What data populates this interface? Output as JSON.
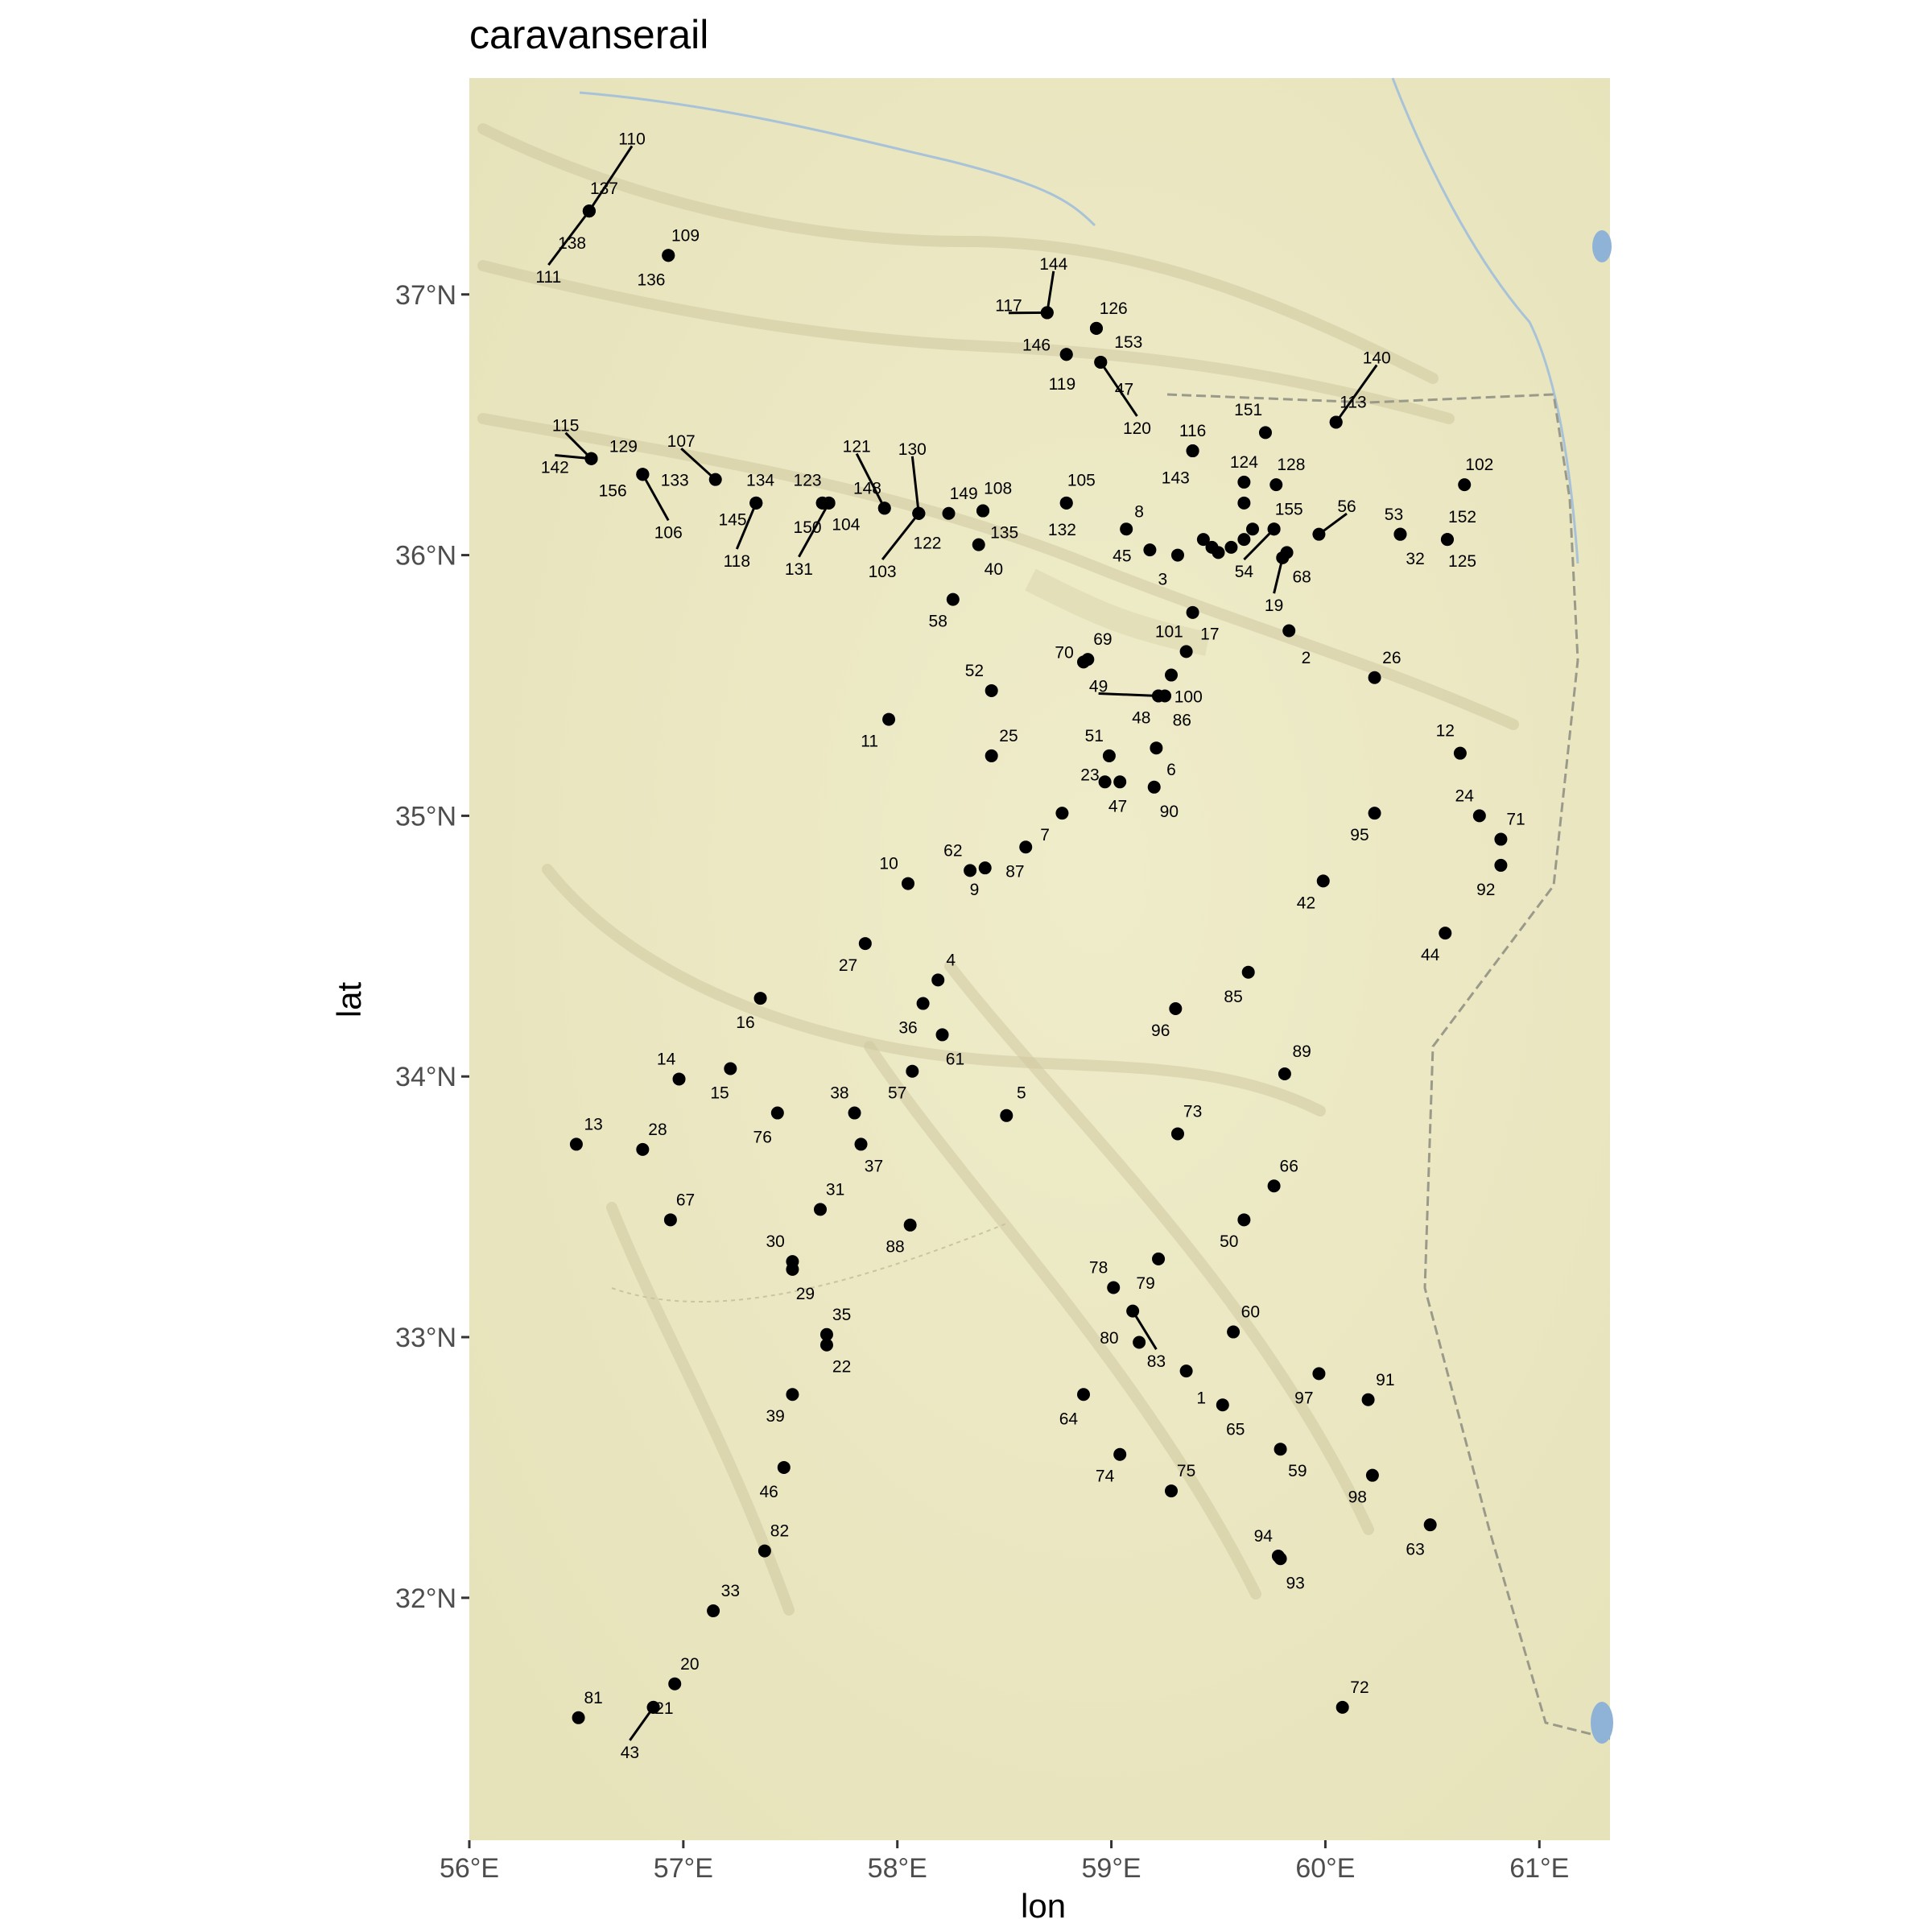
{
  "title": "caravanserail",
  "axes": {
    "xlabel": "lon",
    "ylabel": "lat",
    "xlim": [
      56.0,
      61.33
    ],
    "ylim": [
      31.07,
      37.83
    ],
    "xticks": [
      {
        "value": 56,
        "label": "56°E"
      },
      {
        "value": 57,
        "label": "57°E"
      },
      {
        "value": 58,
        "label": "58°E"
      },
      {
        "value": 59,
        "label": "59°E"
      },
      {
        "value": 60,
        "label": "60°E"
      },
      {
        "value": 61,
        "label": "61°E"
      }
    ],
    "yticks": [
      {
        "value": 32,
        "label": "32°N"
      },
      {
        "value": 33,
        "label": "33°N"
      },
      {
        "value": 34,
        "label": "34°N"
      },
      {
        "value": 35,
        "label": "35°N"
      },
      {
        "value": 36,
        "label": "36°N"
      },
      {
        "value": 37,
        "label": "37°N"
      }
    ]
  },
  "colors": {
    "point": "#000000",
    "background_terrain": "#ede9c6",
    "river": "#a8c3d8",
    "lake": "#8fb3d6",
    "border": "#9a9a8a"
  },
  "chart_data": {
    "type": "scatter",
    "title": "caravanserail",
    "xlabel": "lon",
    "ylabel": "lat",
    "xlim": [
      56.0,
      61.33
    ],
    "ylim": [
      31.07,
      37.83
    ],
    "grid": false,
    "legend": "none",
    "points": [
      {
        "id": "1",
        "x": 59.35,
        "y": 32.87,
        "lx": 59.42,
        "ly": 32.77
      },
      {
        "id": "2",
        "x": 59.83,
        "y": 35.71,
        "lx": 59.91,
        "ly": 35.61
      },
      {
        "id": "3",
        "x": 59.31,
        "y": 36.0,
        "lx": 59.24,
        "ly": 35.91
      },
      {
        "id": "4",
        "x": 58.19,
        "y": 34.37,
        "lx": 58.25,
        "ly": 34.45
      },
      {
        "id": "5",
        "x": 58.51,
        "y": 33.85,
        "lx": 58.58,
        "ly": 33.94
      },
      {
        "id": "6",
        "x": 59.21,
        "y": 35.26,
        "lx": 59.28,
        "ly": 35.18
      },
      {
        "id": "7",
        "x": 58.77,
        "y": 35.01,
        "lx": 58.69,
        "ly": 34.93
      },
      {
        "id": "8",
        "x": 59.07,
        "y": 36.1,
        "lx": 59.13,
        "ly": 36.17
      },
      {
        "id": "9",
        "x": 58.41,
        "y": 34.8,
        "lx": 58.36,
        "ly": 34.72
      },
      {
        "id": "10",
        "x": 58.05,
        "y": 34.74,
        "lx": 57.96,
        "ly": 34.82
      },
      {
        "id": "11",
        "x": 57.96,
        "y": 35.37,
        "lx": 57.87,
        "ly": 35.29
      },
      {
        "id": "12",
        "x": 60.63,
        "y": 35.24,
        "lx": 60.56,
        "ly": 35.33
      },
      {
        "id": "13",
        "x": 56.5,
        "y": 33.74,
        "lx": 56.58,
        "ly": 33.82
      },
      {
        "id": "14",
        "x": 56.98,
        "y": 33.99,
        "lx": 56.92,
        "ly": 34.07
      },
      {
        "id": "15",
        "x": 57.22,
        "y": 34.03,
        "lx": 57.17,
        "ly": 33.94
      },
      {
        "id": "16",
        "x": 57.36,
        "y": 34.3,
        "lx": 57.29,
        "ly": 34.21
      },
      {
        "id": "17",
        "x": 59.38,
        "y": 35.78,
        "lx": 59.46,
        "ly": 35.7
      },
      {
        "id": "19",
        "x": 59.8,
        "y": 35.99,
        "lx": 59.76,
        "ly": 35.81
      },
      {
        "id": "20",
        "x": 56.96,
        "y": 31.67,
        "lx": 57.03,
        "ly": 31.75
      },
      {
        "id": "21",
        "x": 56.86,
        "y": 31.58,
        "lx": 56.91,
        "ly": 31.58
      },
      {
        "id": "22",
        "x": 57.67,
        "y": 32.97,
        "lx": 57.74,
        "ly": 32.89
      },
      {
        "id": "23",
        "x": 58.97,
        "y": 35.13,
        "lx": 58.9,
        "ly": 35.16
      },
      {
        "id": "24",
        "x": 60.72,
        "y": 35.0,
        "lx": 60.65,
        "ly": 35.08
      },
      {
        "id": "25",
        "x": 58.44,
        "y": 35.23,
        "lx": 58.52,
        "ly": 35.31
      },
      {
        "id": "26",
        "x": 60.23,
        "y": 35.53,
        "lx": 60.31,
        "ly": 35.61
      },
      {
        "id": "27",
        "x": 57.85,
        "y": 34.51,
        "lx": 57.77,
        "ly": 34.43
      },
      {
        "id": "28",
        "x": 56.81,
        "y": 33.72,
        "lx": 56.88,
        "ly": 33.8
      },
      {
        "id": "29",
        "x": 57.51,
        "y": 33.26,
        "lx": 57.57,
        "ly": 33.17
      },
      {
        "id": "30",
        "x": 57.51,
        "y": 33.29,
        "lx": 57.43,
        "ly": 33.37
      },
      {
        "id": "31",
        "x": 57.64,
        "y": 33.49,
        "lx": 57.71,
        "ly": 33.57
      },
      {
        "id": "32",
        "x": 60.35,
        "y": 36.08,
        "lx": 60.42,
        "ly": 35.99
      },
      {
        "id": "33",
        "x": 57.14,
        "y": 31.95,
        "lx": 57.22,
        "ly": 32.03
      },
      {
        "id": "35",
        "x": 57.67,
        "y": 33.01,
        "lx": 57.74,
        "ly": 33.09
      },
      {
        "id": "36",
        "x": 58.12,
        "y": 34.28,
        "lx": 58.05,
        "ly": 34.19
      },
      {
        "id": "37",
        "x": 57.83,
        "y": 33.74,
        "lx": 57.89,
        "ly": 33.66
      },
      {
        "id": "38",
        "x": 57.8,
        "y": 33.86,
        "lx": 57.73,
        "ly": 33.94
      },
      {
        "id": "39",
        "x": 57.51,
        "y": 32.78,
        "lx": 57.43,
        "ly": 32.7
      },
      {
        "id": "40",
        "x": 58.38,
        "y": 36.04,
        "lx": 58.45,
        "ly": 35.95
      },
      {
        "id": "42",
        "x": 59.99,
        "y": 34.75,
        "lx": 59.91,
        "ly": 34.67
      },
      {
        "id": "43",
        "x": 56.86,
        "y": 31.58,
        "lx": 56.75,
        "ly": 31.41
      },
      {
        "id": "44",
        "x": 60.56,
        "y": 34.55,
        "lx": 60.49,
        "ly": 34.47
      },
      {
        "id": "45",
        "x": 59.18,
        "y": 36.02,
        "lx": 59.05,
        "ly": 36.0
      },
      {
        "id": "46",
        "x": 57.47,
        "y": 32.5,
        "lx": 57.4,
        "ly": 32.41
      },
      {
        "id": "47",
        "x": 58.95,
        "y": 36.74,
        "lx": 59.06,
        "ly": 36.64
      },
      {
        "id": "47b",
        "x": 59.04,
        "y": 35.13,
        "lx": 59.03,
        "ly": 35.04
      },
      {
        "id": "48",
        "x": 59.22,
        "y": 35.46,
        "lx": 59.14,
        "ly": 35.38
      },
      {
        "id": "49",
        "x": 59.22,
        "y": 35.46,
        "lx": 58.94,
        "ly": 35.5
      },
      {
        "id": "50",
        "x": 59.62,
        "y": 33.45,
        "lx": 59.55,
        "ly": 33.37
      },
      {
        "id": "51",
        "x": 58.99,
        "y": 35.23,
        "lx": 58.92,
        "ly": 35.31
      },
      {
        "id": "52",
        "x": 58.44,
        "y": 35.48,
        "lx": 58.36,
        "ly": 35.56
      },
      {
        "id": "53",
        "x": 60.35,
        "y": 36.08,
        "lx": 60.32,
        "ly": 36.16
      },
      {
        "id": "54",
        "x": 59.76,
        "y": 36.1,
        "lx": 59.62,
        "ly": 35.94
      },
      {
        "id": "56",
        "x": 59.97,
        "y": 36.08,
        "lx": 60.1,
        "ly": 36.19
      },
      {
        "id": "57",
        "x": 58.07,
        "y": 34.02,
        "lx": 58.0,
        "ly": 33.94
      },
      {
        "id": "58",
        "x": 58.26,
        "y": 35.83,
        "lx": 58.19,
        "ly": 35.75
      },
      {
        "id": "59",
        "x": 59.79,
        "y": 32.57,
        "lx": 59.87,
        "ly": 32.49
      },
      {
        "id": "60",
        "x": 59.57,
        "y": 33.02,
        "lx": 59.65,
        "ly": 33.1
      },
      {
        "id": "61",
        "x": 58.21,
        "y": 34.16,
        "lx": 58.27,
        "ly": 34.07
      },
      {
        "id": "62",
        "x": 58.34,
        "y": 34.79,
        "lx": 58.26,
        "ly": 34.87
      },
      {
        "id": "63",
        "x": 60.49,
        "y": 32.28,
        "lx": 60.42,
        "ly": 32.19
      },
      {
        "id": "64",
        "x": 58.87,
        "y": 32.78,
        "lx": 58.8,
        "ly": 32.69
      },
      {
        "id": "65",
        "x": 59.52,
        "y": 32.74,
        "lx": 59.58,
        "ly": 32.65
      },
      {
        "id": "66",
        "x": 59.76,
        "y": 33.58,
        "lx": 59.83,
        "ly": 33.66
      },
      {
        "id": "67",
        "x": 56.94,
        "y": 33.45,
        "lx": 57.01,
        "ly": 33.53
      },
      {
        "id": "68",
        "x": 59.82,
        "y": 36.01,
        "lx": 59.89,
        "ly": 35.92
      },
      {
        "id": "69",
        "x": 58.89,
        "y": 35.6,
        "lx": 58.96,
        "ly": 35.68
      },
      {
        "id": "70",
        "x": 58.87,
        "y": 35.59,
        "lx": 58.78,
        "ly": 35.63
      },
      {
        "id": "71",
        "x": 60.82,
        "y": 34.91,
        "lx": 60.89,
        "ly": 34.99
      },
      {
        "id": "72",
        "x": 60.08,
        "y": 31.58,
        "lx": 60.16,
        "ly": 31.66
      },
      {
        "id": "73",
        "x": 59.31,
        "y": 33.78,
        "lx": 59.38,
        "ly": 33.87
      },
      {
        "id": "74",
        "x": 59.04,
        "y": 32.55,
        "lx": 58.97,
        "ly": 32.47
      },
      {
        "id": "75",
        "x": 59.28,
        "y": 32.41,
        "lx": 59.35,
        "ly": 32.49
      },
      {
        "id": "76",
        "x": 57.44,
        "y": 33.86,
        "lx": 57.37,
        "ly": 33.77
      },
      {
        "id": "78",
        "x": 59.01,
        "y": 33.19,
        "lx": 58.94,
        "ly": 33.27
      },
      {
        "id": "79",
        "x": 59.22,
        "y": 33.3,
        "lx": 59.16,
        "ly": 33.21
      },
      {
        "id": "80",
        "x": 59.13,
        "y": 32.98,
        "lx": 58.99,
        "ly": 33.0
      },
      {
        "id": "81",
        "x": 56.51,
        "y": 31.54,
        "lx": 56.58,
        "ly": 31.62
      },
      {
        "id": "82",
        "x": 57.38,
        "y": 32.18,
        "lx": 57.45,
        "ly": 32.26
      },
      {
        "id": "83",
        "x": 59.1,
        "y": 33.1,
        "lx": 59.21,
        "ly": 32.91
      },
      {
        "id": "85",
        "x": 59.64,
        "y": 34.4,
        "lx": 59.57,
        "ly": 34.31
      },
      {
        "id": "86",
        "x": 59.25,
        "y": 35.46,
        "lx": 59.33,
        "ly": 35.37
      },
      {
        "id": "87",
        "x": 58.6,
        "y": 34.88,
        "lx": 58.55,
        "ly": 34.79
      },
      {
        "id": "88",
        "x": 58.06,
        "y": 33.43,
        "lx": 57.99,
        "ly": 33.35
      },
      {
        "id": "89",
        "x": 59.81,
        "y": 34.01,
        "lx": 59.89,
        "ly": 34.1
      },
      {
        "id": "90",
        "x": 59.2,
        "y": 35.11,
        "lx": 59.27,
        "ly": 35.02
      },
      {
        "id": "91",
        "x": 60.2,
        "y": 32.76,
        "lx": 60.28,
        "ly": 32.84
      },
      {
        "id": "92",
        "x": 60.82,
        "y": 34.81,
        "lx": 60.75,
        "ly": 34.72
      },
      {
        "id": "93",
        "x": 59.79,
        "y": 32.15,
        "lx": 59.86,
        "ly": 32.06
      },
      {
        "id": "94",
        "x": 59.78,
        "y": 32.16,
        "lx": 59.71,
        "ly": 32.24
      },
      {
        "id": "95",
        "x": 60.23,
        "y": 35.01,
        "lx": 60.16,
        "ly": 34.93
      },
      {
        "id": "96",
        "x": 59.3,
        "y": 34.26,
        "lx": 59.23,
        "ly": 34.18
      },
      {
        "id": "97",
        "x": 59.97,
        "y": 32.86,
        "lx": 59.9,
        "ly": 32.77
      },
      {
        "id": "98",
        "x": 60.22,
        "y": 32.47,
        "lx": 60.15,
        "ly": 32.39
      },
      {
        "id": "100",
        "x": 59.28,
        "y": 35.54,
        "lx": 59.36,
        "ly": 35.46
      },
      {
        "id": "101",
        "x": 59.35,
        "y": 35.63,
        "lx": 59.27,
        "ly": 35.71
      },
      {
        "id": "102",
        "x": 60.65,
        "y": 36.27,
        "lx": 60.72,
        "ly": 36.35
      },
      {
        "id": "103",
        "x": 58.1,
        "y": 36.16,
        "lx": 57.93,
        "ly": 35.94
      },
      {
        "id": "104",
        "x": 57.68,
        "y": 36.2,
        "lx": 57.76,
        "ly": 36.12
      },
      {
        "id": "105",
        "x": 58.79,
        "y": 36.2,
        "lx": 58.86,
        "ly": 36.29
      },
      {
        "id": "106",
        "x": 56.81,
        "y": 36.31,
        "lx": 56.93,
        "ly": 36.09
      },
      {
        "id": "107",
        "x": 57.15,
        "y": 36.29,
        "lx": 56.99,
        "ly": 36.44
      },
      {
        "id": "108",
        "x": 58.4,
        "y": 36.17,
        "lx": 58.47,
        "ly": 36.26
      },
      {
        "id": "109",
        "x": 56.93,
        "y": 37.15,
        "lx": 57.01,
        "ly": 37.23
      },
      {
        "id": "110",
        "x": 56.56,
        "y": 37.32,
        "lx": 56.76,
        "ly": 37.6
      },
      {
        "id": "111",
        "x": 56.56,
        "y": 37.32,
        "lx": 56.37,
        "ly": 37.07
      },
      {
        "id": "113",
        "x": 60.05,
        "y": 36.51,
        "lx": 60.13,
        "ly": 36.59
      },
      {
        "id": "115",
        "x": 56.57,
        "y": 36.37,
        "lx": 56.45,
        "ly": 36.5
      },
      {
        "id": "116",
        "x": 59.38,
        "y": 36.4,
        "lx": 59.38,
        "ly": 36.48
      },
      {
        "id": "117",
        "x": 58.7,
        "y": 36.93,
        "lx": 58.52,
        "ly": 36.96
      },
      {
        "id": "118",
        "x": 57.34,
        "y": 36.2,
        "lx": 57.25,
        "ly": 35.98
      },
      {
        "id": "119",
        "x": 58.79,
        "y": 36.77,
        "lx": 58.77,
        "ly": 36.66
      },
      {
        "id": "120",
        "x": 58.95,
        "y": 36.74,
        "lx": 59.12,
        "ly": 36.49
      },
      {
        "id": "121",
        "x": 57.94,
        "y": 36.18,
        "lx": 57.81,
        "ly": 36.42
      },
      {
        "id": "122",
        "x": 58.1,
        "y": 36.16,
        "lx": 58.14,
        "ly": 36.05
      },
      {
        "id": "123",
        "x": 57.65,
        "y": 36.2,
        "lx": 57.58,
        "ly": 36.29
      },
      {
        "id": "124",
        "x": 59.62,
        "y": 36.28,
        "lx": 59.62,
        "ly": 36.36
      },
      {
        "id": "125",
        "x": 60.57,
        "y": 36.06,
        "lx": 60.64,
        "ly": 35.98
      },
      {
        "id": "126",
        "x": 58.93,
        "y": 36.87,
        "lx": 59.01,
        "ly": 36.95
      },
      {
        "id": "128",
        "x": 59.77,
        "y": 36.27,
        "lx": 59.84,
        "ly": 36.35
      },
      {
        "id": "129",
        "x": 56.57,
        "y": 36.37,
        "lx": 56.72,
        "ly": 36.42
      },
      {
        "id": "130",
        "x": 58.1,
        "y": 36.16,
        "lx": 58.07,
        "ly": 36.41
      },
      {
        "id": "131",
        "x": 57.68,
        "y": 36.2,
        "lx": 57.54,
        "ly": 35.95
      },
      {
        "id": "132",
        "x": 58.79,
        "y": 36.2,
        "lx": 58.77,
        "ly": 36.1
      },
      {
        "id": "133",
        "x": 56.81,
        "y": 36.31,
        "lx": 56.96,
        "ly": 36.29
      },
      {
        "id": "134",
        "x": 57.34,
        "y": 36.2,
        "lx": 57.36,
        "ly": 36.29
      },
      {
        "id": "135",
        "x": 58.4,
        "y": 36.17,
        "lx": 58.5,
        "ly": 36.09
      },
      {
        "id": "136",
        "x": 56.93,
        "y": 37.15,
        "lx": 56.85,
        "ly": 37.06
      },
      {
        "id": "137",
        "x": 56.56,
        "y": 37.32,
        "lx": 56.63,
        "ly": 37.41
      },
      {
        "id": "138",
        "x": 56.56,
        "y": 37.32,
        "lx": 56.48,
        "ly": 37.2
      },
      {
        "id": "140",
        "x": 60.05,
        "y": 36.51,
        "lx": 60.24,
        "ly": 36.76
      },
      {
        "id": "142",
        "x": 56.57,
        "y": 36.37,
        "lx": 56.4,
        "ly": 36.34
      },
      {
        "id": "143",
        "x": 59.38,
        "y": 36.4,
        "lx": 59.3,
        "ly": 36.3
      },
      {
        "id": "144",
        "x": 58.7,
        "y": 36.93,
        "lx": 58.73,
        "ly": 37.12
      },
      {
        "id": "145",
        "x": 57.34,
        "y": 36.2,
        "lx": 57.23,
        "ly": 36.14
      },
      {
        "id": "146",
        "x": 58.79,
        "y": 36.77,
        "lx": 58.65,
        "ly": 36.81
      },
      {
        "id": "148",
        "x": 57.94,
        "y": 36.18,
        "lx": 57.86,
        "ly": 36.26
      },
      {
        "id": "149",
        "x": 58.24,
        "y": 36.16,
        "lx": 58.31,
        "ly": 36.24
      },
      {
        "id": "150",
        "x": 57.65,
        "y": 36.2,
        "lx": 57.58,
        "ly": 36.11
      },
      {
        "id": "151",
        "x": 59.72,
        "y": 36.47,
        "lx": 59.64,
        "ly": 36.56
      },
      {
        "id": "152",
        "x": 60.57,
        "y": 36.06,
        "lx": 60.64,
        "ly": 36.15
      },
      {
        "id": "153",
        "x": 58.93,
        "y": 36.87,
        "lx": 59.08,
        "ly": 36.82
      },
      {
        "id": "155",
        "x": 59.76,
        "y": 36.1,
        "lx": 59.83,
        "ly": 36.18
      },
      {
        "id": "156",
        "x": 56.81,
        "y": 36.31,
        "lx": 56.67,
        "ly": 36.25
      },
      {
        "id": "c1",
        "x": 59.47,
        "y": 36.03,
        "lx": null,
        "ly": null
      },
      {
        "id": "c2",
        "x": 59.5,
        "y": 36.01,
        "lx": null,
        "ly": null
      },
      {
        "id": "c3",
        "x": 59.43,
        "y": 36.06,
        "lx": null,
        "ly": null
      },
      {
        "id": "c4",
        "x": 59.56,
        "y": 36.03,
        "lx": null,
        "ly": null
      },
      {
        "id": "c5",
        "x": 59.62,
        "y": 36.06,
        "lx": null,
        "ly": null
      },
      {
        "id": "c6",
        "x": 59.66,
        "y": 36.1,
        "lx": null,
        "ly": null
      },
      {
        "id": "c7",
        "x": 59.62,
        "y": 36.2,
        "lx": null,
        "ly": null
      }
    ]
  }
}
